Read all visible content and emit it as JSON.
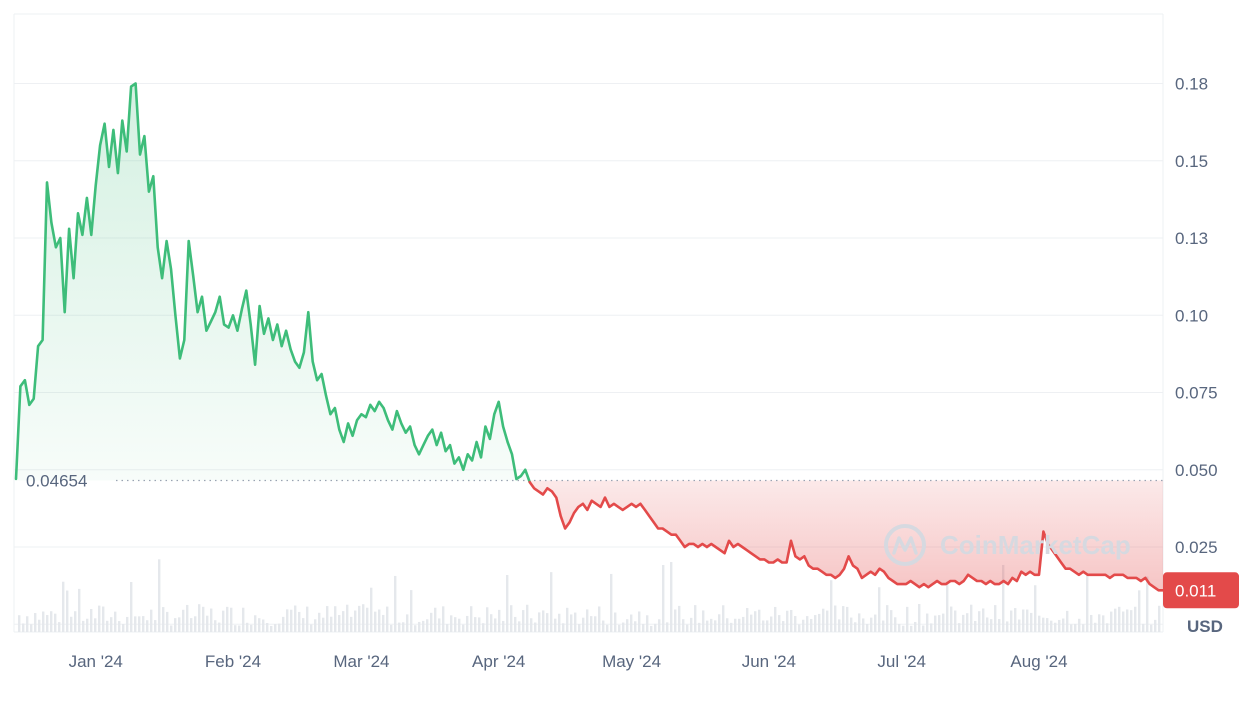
{
  "colors": {
    "up": "#3ebd7a",
    "down": "#e34a4a",
    "up_fill": "#d9f2e3",
    "down_fill": "#f6caca",
    "grid": "#eef0f3",
    "label": "#58667e",
    "volume": "#e5e8ec",
    "watermark": "#d6d9e0"
  },
  "watermark": {
    "text": "CoinMarketCap",
    "icon": "coinmarketcap-logo-icon"
  },
  "chart_data": {
    "type": "area",
    "unit_label": "USD",
    "baseline": {
      "value": 0.04654,
      "label": "0.04654"
    },
    "last_price": {
      "value": 0.011,
      "label": "0.011"
    },
    "yticks": [
      {
        "value": 0.025,
        "label": "0.025"
      },
      {
        "value": 0.05,
        "label": "0.050"
      },
      {
        "value": 0.075,
        "label": "0.075"
      },
      {
        "value": 0.1,
        "label": "0.10"
      },
      {
        "value": 0.125,
        "label": "0.13"
      },
      {
        "value": 0.15,
        "label": "0.15"
      },
      {
        "value": 0.175,
        "label": "0.18"
      }
    ],
    "ylim": [
      -0.0025,
      0.1975
    ],
    "xlim": [
      "2023-12-14",
      "2024-08-29"
    ],
    "xticks": [
      {
        "date": "2024-01-01",
        "label": "Jan '24"
      },
      {
        "date": "2024-02-01",
        "label": "Feb '24"
      },
      {
        "date": "2024-03-01",
        "label": "Mar '24"
      },
      {
        "date": "2024-04-01",
        "label": "Apr '24"
      },
      {
        "date": "2024-05-01",
        "label": "May '24"
      },
      {
        "date": "2024-06-01",
        "label": "Jun '24"
      },
      {
        "date": "2024-07-01",
        "label": "Jul '24"
      },
      {
        "date": "2024-08-01",
        "label": "Aug '24"
      }
    ],
    "grid": true,
    "series": [
      {
        "points": [
          [
            "2023-12-14",
            0.047
          ],
          [
            "2023-12-15",
            0.077
          ],
          [
            "2023-12-16",
            0.079
          ],
          [
            "2023-12-17",
            0.071
          ],
          [
            "2023-12-18",
            0.073
          ],
          [
            "2023-12-19",
            0.09
          ],
          [
            "2023-12-20",
            0.092
          ],
          [
            "2023-12-21",
            0.143
          ],
          [
            "2023-12-22",
            0.13
          ],
          [
            "2023-12-23",
            0.122
          ],
          [
            "2023-12-24",
            0.125
          ],
          [
            "2023-12-25",
            0.101
          ],
          [
            "2023-12-26",
            0.128
          ],
          [
            "2023-12-27",
            0.112
          ],
          [
            "2023-12-28",
            0.133
          ],
          [
            "2023-12-29",
            0.126
          ],
          [
            "2023-12-30",
            0.138
          ],
          [
            "2023-12-31",
            0.126
          ],
          [
            "2024-01-01",
            0.142
          ],
          [
            "2024-01-02",
            0.155
          ],
          [
            "2024-01-03",
            0.162
          ],
          [
            "2024-01-04",
            0.148
          ],
          [
            "2024-01-05",
            0.16
          ],
          [
            "2024-01-06",
            0.146
          ],
          [
            "2024-01-07",
            0.163
          ],
          [
            "2024-01-08",
            0.153
          ],
          [
            "2024-01-09",
            0.174
          ],
          [
            "2024-01-10",
            0.175
          ],
          [
            "2024-01-11",
            0.152
          ],
          [
            "2024-01-12",
            0.158
          ],
          [
            "2024-01-13",
            0.14
          ],
          [
            "2024-01-14",
            0.145
          ],
          [
            "2024-01-15",
            0.122
          ],
          [
            "2024-01-16",
            0.112
          ],
          [
            "2024-01-17",
            0.124
          ],
          [
            "2024-01-18",
            0.115
          ],
          [
            "2024-01-19",
            0.1
          ],
          [
            "2024-01-20",
            0.086
          ],
          [
            "2024-01-21",
            0.092
          ],
          [
            "2024-01-22",
            0.124
          ],
          [
            "2024-01-23",
            0.113
          ],
          [
            "2024-01-24",
            0.101
          ],
          [
            "2024-01-25",
            0.106
          ],
          [
            "2024-01-26",
            0.095
          ],
          [
            "2024-01-27",
            0.098
          ],
          [
            "2024-01-28",
            0.101
          ],
          [
            "2024-01-29",
            0.106
          ],
          [
            "2024-01-30",
            0.097
          ],
          [
            "2024-01-31",
            0.096
          ],
          [
            "2024-02-01",
            0.1
          ],
          [
            "2024-02-02",
            0.095
          ],
          [
            "2024-02-03",
            0.102
          ],
          [
            "2024-02-04",
            0.108
          ],
          [
            "2024-02-05",
            0.097
          ],
          [
            "2024-02-06",
            0.084
          ],
          [
            "2024-02-07",
            0.103
          ],
          [
            "2024-02-08",
            0.094
          ],
          [
            "2024-02-09",
            0.099
          ],
          [
            "2024-02-10",
            0.092
          ],
          [
            "2024-02-11",
            0.097
          ],
          [
            "2024-02-12",
            0.09
          ],
          [
            "2024-02-13",
            0.095
          ],
          [
            "2024-02-14",
            0.089
          ],
          [
            "2024-02-15",
            0.085
          ],
          [
            "2024-02-16",
            0.083
          ],
          [
            "2024-02-17",
            0.088
          ],
          [
            "2024-02-18",
            0.101
          ],
          [
            "2024-02-19",
            0.085
          ],
          [
            "2024-02-20",
            0.079
          ],
          [
            "2024-02-21",
            0.081
          ],
          [
            "2024-02-22",
            0.074
          ],
          [
            "2024-02-23",
            0.068
          ],
          [
            "2024-02-24",
            0.07
          ],
          [
            "2024-02-25",
            0.063
          ],
          [
            "2024-02-26",
            0.059
          ],
          [
            "2024-02-27",
            0.065
          ],
          [
            "2024-02-28",
            0.061
          ],
          [
            "2024-02-29",
            0.066
          ],
          [
            "2024-03-01",
            0.068
          ],
          [
            "2024-03-02",
            0.067
          ],
          [
            "2024-03-03",
            0.071
          ],
          [
            "2024-03-04",
            0.069
          ],
          [
            "2024-03-05",
            0.072
          ],
          [
            "2024-03-06",
            0.07
          ],
          [
            "2024-03-07",
            0.066
          ],
          [
            "2024-03-08",
            0.063
          ],
          [
            "2024-03-09",
            0.069
          ],
          [
            "2024-03-10",
            0.065
          ],
          [
            "2024-03-11",
            0.062
          ],
          [
            "2024-03-12",
            0.064
          ],
          [
            "2024-03-13",
            0.058
          ],
          [
            "2024-03-14",
            0.055
          ],
          [
            "2024-03-15",
            0.058
          ],
          [
            "2024-03-16",
            0.061
          ],
          [
            "2024-03-17",
            0.063
          ],
          [
            "2024-03-18",
            0.058
          ],
          [
            "2024-03-19",
            0.062
          ],
          [
            "2024-03-20",
            0.056
          ],
          [
            "2024-03-21",
            0.058
          ],
          [
            "2024-03-22",
            0.052
          ],
          [
            "2024-03-23",
            0.054
          ],
          [
            "2024-03-24",
            0.05
          ],
          [
            "2024-03-25",
            0.055
          ],
          [
            "2024-03-26",
            0.053
          ],
          [
            "2024-03-27",
            0.059
          ],
          [
            "2024-03-28",
            0.054
          ],
          [
            "2024-03-29",
            0.064
          ],
          [
            "2024-03-30",
            0.06
          ],
          [
            "2024-03-31",
            0.068
          ],
          [
            "2024-04-01",
            0.072
          ],
          [
            "2024-04-02",
            0.064
          ],
          [
            "2024-04-03",
            0.059
          ],
          [
            "2024-04-04",
            0.055
          ],
          [
            "2024-04-05",
            0.047
          ],
          [
            "2024-04-06",
            0.048
          ],
          [
            "2024-04-07",
            0.05
          ],
          [
            "2024-04-08",
            0.046
          ]
        ]
      },
      {
        "points": [
          [
            "2024-04-08",
            0.046
          ],
          [
            "2024-04-09",
            0.044
          ],
          [
            "2024-04-10",
            0.043
          ],
          [
            "2024-04-11",
            0.042
          ],
          [
            "2024-04-12",
            0.044
          ],
          [
            "2024-04-13",
            0.043
          ],
          [
            "2024-04-14",
            0.041
          ],
          [
            "2024-04-15",
            0.035
          ],
          [
            "2024-04-16",
            0.031
          ],
          [
            "2024-04-17",
            0.033
          ],
          [
            "2024-04-18",
            0.036
          ],
          [
            "2024-04-19",
            0.038
          ],
          [
            "2024-04-20",
            0.039
          ],
          [
            "2024-04-21",
            0.037
          ],
          [
            "2024-04-22",
            0.04
          ],
          [
            "2024-04-23",
            0.039
          ],
          [
            "2024-04-24",
            0.038
          ],
          [
            "2024-04-25",
            0.041
          ],
          [
            "2024-04-26",
            0.038
          ],
          [
            "2024-04-27",
            0.039
          ],
          [
            "2024-04-28",
            0.038
          ],
          [
            "2024-04-29",
            0.037
          ],
          [
            "2024-04-30",
            0.038
          ],
          [
            "2024-05-01",
            0.039
          ],
          [
            "2024-05-02",
            0.038
          ],
          [
            "2024-05-03",
            0.039
          ],
          [
            "2024-05-04",
            0.037
          ],
          [
            "2024-05-05",
            0.035
          ],
          [
            "2024-05-06",
            0.033
          ],
          [
            "2024-05-07",
            0.031
          ],
          [
            "2024-05-08",
            0.031
          ],
          [
            "2024-05-09",
            0.03
          ],
          [
            "2024-05-10",
            0.029
          ],
          [
            "2024-05-11",
            0.029
          ],
          [
            "2024-05-12",
            0.027
          ],
          [
            "2024-05-13",
            0.025
          ],
          [
            "2024-05-14",
            0.026
          ],
          [
            "2024-05-15",
            0.026
          ],
          [
            "2024-05-16",
            0.025
          ],
          [
            "2024-05-17",
            0.026
          ],
          [
            "2024-05-18",
            0.025
          ],
          [
            "2024-05-19",
            0.026
          ],
          [
            "2024-05-20",
            0.025
          ],
          [
            "2024-05-21",
            0.024
          ],
          [
            "2024-05-22",
            0.023
          ],
          [
            "2024-05-23",
            0.027
          ],
          [
            "2024-05-24",
            0.025
          ],
          [
            "2024-05-25",
            0.026
          ],
          [
            "2024-05-26",
            0.025
          ],
          [
            "2024-05-27",
            0.024
          ],
          [
            "2024-05-28",
            0.023
          ],
          [
            "2024-05-29",
            0.022
          ],
          [
            "2024-05-30",
            0.021
          ],
          [
            "2024-05-31",
            0.021
          ],
          [
            "2024-06-01",
            0.02
          ],
          [
            "2024-06-02",
            0.02
          ],
          [
            "2024-06-03",
            0.021
          ],
          [
            "2024-06-04",
            0.02
          ],
          [
            "2024-06-05",
            0.02
          ],
          [
            "2024-06-06",
            0.027
          ],
          [
            "2024-06-07",
            0.022
          ],
          [
            "2024-06-08",
            0.021
          ],
          [
            "2024-06-09",
            0.022
          ],
          [
            "2024-06-10",
            0.019
          ],
          [
            "2024-06-11",
            0.018
          ],
          [
            "2024-06-12",
            0.018
          ],
          [
            "2024-06-13",
            0.017
          ],
          [
            "2024-06-14",
            0.016
          ],
          [
            "2024-06-15",
            0.016
          ],
          [
            "2024-06-16",
            0.015
          ],
          [
            "2024-06-17",
            0.016
          ],
          [
            "2024-06-18",
            0.018
          ],
          [
            "2024-06-19",
            0.022
          ],
          [
            "2024-06-20",
            0.019
          ],
          [
            "2024-06-21",
            0.018
          ],
          [
            "2024-06-22",
            0.015
          ],
          [
            "2024-06-23",
            0.016
          ],
          [
            "2024-06-24",
            0.017
          ],
          [
            "2024-06-25",
            0.016
          ],
          [
            "2024-06-26",
            0.018
          ],
          [
            "2024-06-27",
            0.017
          ],
          [
            "2024-06-28",
            0.015
          ],
          [
            "2024-06-29",
            0.014
          ],
          [
            "2024-06-30",
            0.013
          ],
          [
            "2024-07-01",
            0.013
          ],
          [
            "2024-07-02",
            0.013
          ],
          [
            "2024-07-03",
            0.014
          ],
          [
            "2024-07-04",
            0.013
          ],
          [
            "2024-07-05",
            0.012
          ],
          [
            "2024-07-06",
            0.013
          ],
          [
            "2024-07-07",
            0.012
          ],
          [
            "2024-07-08",
            0.013
          ],
          [
            "2024-07-09",
            0.014
          ],
          [
            "2024-07-10",
            0.013
          ],
          [
            "2024-07-11",
            0.013
          ],
          [
            "2024-07-12",
            0.014
          ],
          [
            "2024-07-13",
            0.014
          ],
          [
            "2024-07-14",
            0.013
          ],
          [
            "2024-07-15",
            0.014
          ],
          [
            "2024-07-16",
            0.016
          ],
          [
            "2024-07-17",
            0.015
          ],
          [
            "2024-07-18",
            0.014
          ],
          [
            "2024-07-19",
            0.014
          ],
          [
            "2024-07-20",
            0.013
          ],
          [
            "2024-07-21",
            0.014
          ],
          [
            "2024-07-22",
            0.013
          ],
          [
            "2024-07-23",
            0.013
          ],
          [
            "2024-07-24",
            0.014
          ],
          [
            "2024-07-25",
            0.013
          ],
          [
            "2024-07-26",
            0.015
          ],
          [
            "2024-07-27",
            0.014
          ],
          [
            "2024-07-28",
            0.017
          ],
          [
            "2024-07-29",
            0.016
          ],
          [
            "2024-07-30",
            0.017
          ],
          [
            "2024-07-31",
            0.016
          ],
          [
            "2024-08-01",
            0.016
          ],
          [
            "2024-08-02",
            0.03
          ],
          [
            "2024-08-03",
            0.026
          ],
          [
            "2024-08-04",
            0.024
          ],
          [
            "2024-08-05",
            0.022
          ],
          [
            "2024-08-06",
            0.02
          ],
          [
            "2024-08-07",
            0.018
          ],
          [
            "2024-08-08",
            0.018
          ],
          [
            "2024-08-09",
            0.017
          ],
          [
            "2024-08-10",
            0.016
          ],
          [
            "2024-08-11",
            0.017
          ],
          [
            "2024-08-12",
            0.016
          ],
          [
            "2024-08-13",
            0.016
          ],
          [
            "2024-08-14",
            0.016
          ],
          [
            "2024-08-15",
            0.016
          ],
          [
            "2024-08-16",
            0.016
          ],
          [
            "2024-08-17",
            0.015
          ],
          [
            "2024-08-18",
            0.016
          ],
          [
            "2024-08-19",
            0.016
          ],
          [
            "2024-08-20",
            0.016
          ],
          [
            "2024-08-21",
            0.015
          ],
          [
            "2024-08-22",
            0.015
          ],
          [
            "2024-08-23",
            0.015
          ],
          [
            "2024-08-24",
            0.014
          ],
          [
            "2024-08-25",
            0.015
          ],
          [
            "2024-08-26",
            0.013
          ],
          [
            "2024-08-27",
            0.012
          ],
          [
            "2024-08-28",
            0.011
          ],
          [
            "2024-08-29",
            0.011
          ]
        ]
      }
    ]
  }
}
